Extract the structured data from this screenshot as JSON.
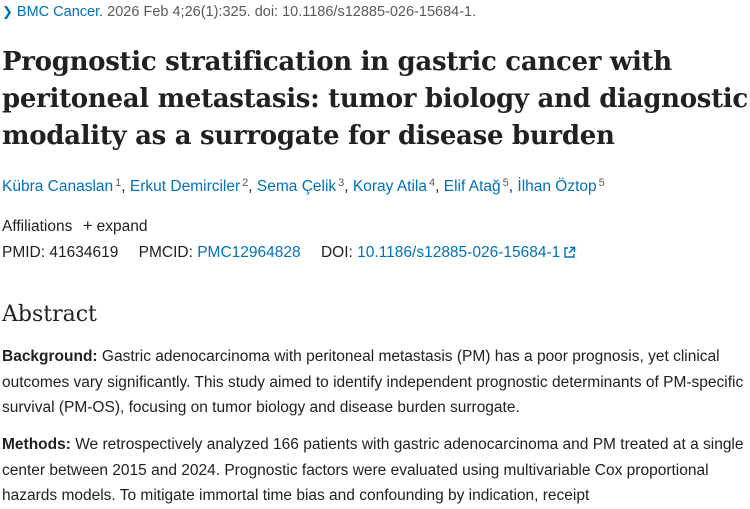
{
  "citation": {
    "journal": "BMC Cancer.",
    "details": "2026 Feb 4;26(1):325. doi: 10.1186/s12885-026-15684-1."
  },
  "title": "Prognostic stratification in gastric cancer with peritoneal metastasis: tumor biology and diagnostic modality as a surrogate for disease burden",
  "authors": [
    {
      "name": "Kübra Canaslan",
      "aff": "1"
    },
    {
      "name": "Erkut Demirciler",
      "aff": "2"
    },
    {
      "name": "Sema Çelik",
      "aff": "3"
    },
    {
      "name": "Koray Atila",
      "aff": "4"
    },
    {
      "name": "Elif Atağ",
      "aff": "5"
    },
    {
      "name": "İlhan Öztop",
      "aff": "5"
    }
  ],
  "affiliations": {
    "label": "Affiliations",
    "expand": "expand"
  },
  "ids": {
    "pmid_label": "PMID:",
    "pmid": "41634619",
    "pmcid_label": "PMCID:",
    "pmcid": "PMC12964828",
    "doi_label": "DOI:",
    "doi": "10.1186/s12885-026-15684-1"
  },
  "abstract": {
    "heading": "Abstract",
    "background_label": "Background:",
    "background_text": " Gastric adenocarcinoma with peritoneal metastasis (PM) has a poor prognosis, yet clinical outcomes vary significantly. This study aimed to identify independent prognostic determinants of PM-specific survival (PM-OS), focusing on tumor biology and disease burden surrogate.",
    "methods_label": "Methods:",
    "methods_text": " We retrospectively analyzed 166 patients with gastric adenocarcinoma and PM treated at a single center between 2015 and 2024. Prognostic factors were evaluated using multivariable Cox proportional hazards models. To mitigate immortal time bias and confounding by indication, receipt"
  },
  "colors": {
    "link": "#0071bc",
    "text": "#212121",
    "muted": "#5a5a5a"
  },
  "icons": {
    "chevron": "chevron-right-icon",
    "plus": "plus-icon",
    "external": "external-link-icon"
  }
}
